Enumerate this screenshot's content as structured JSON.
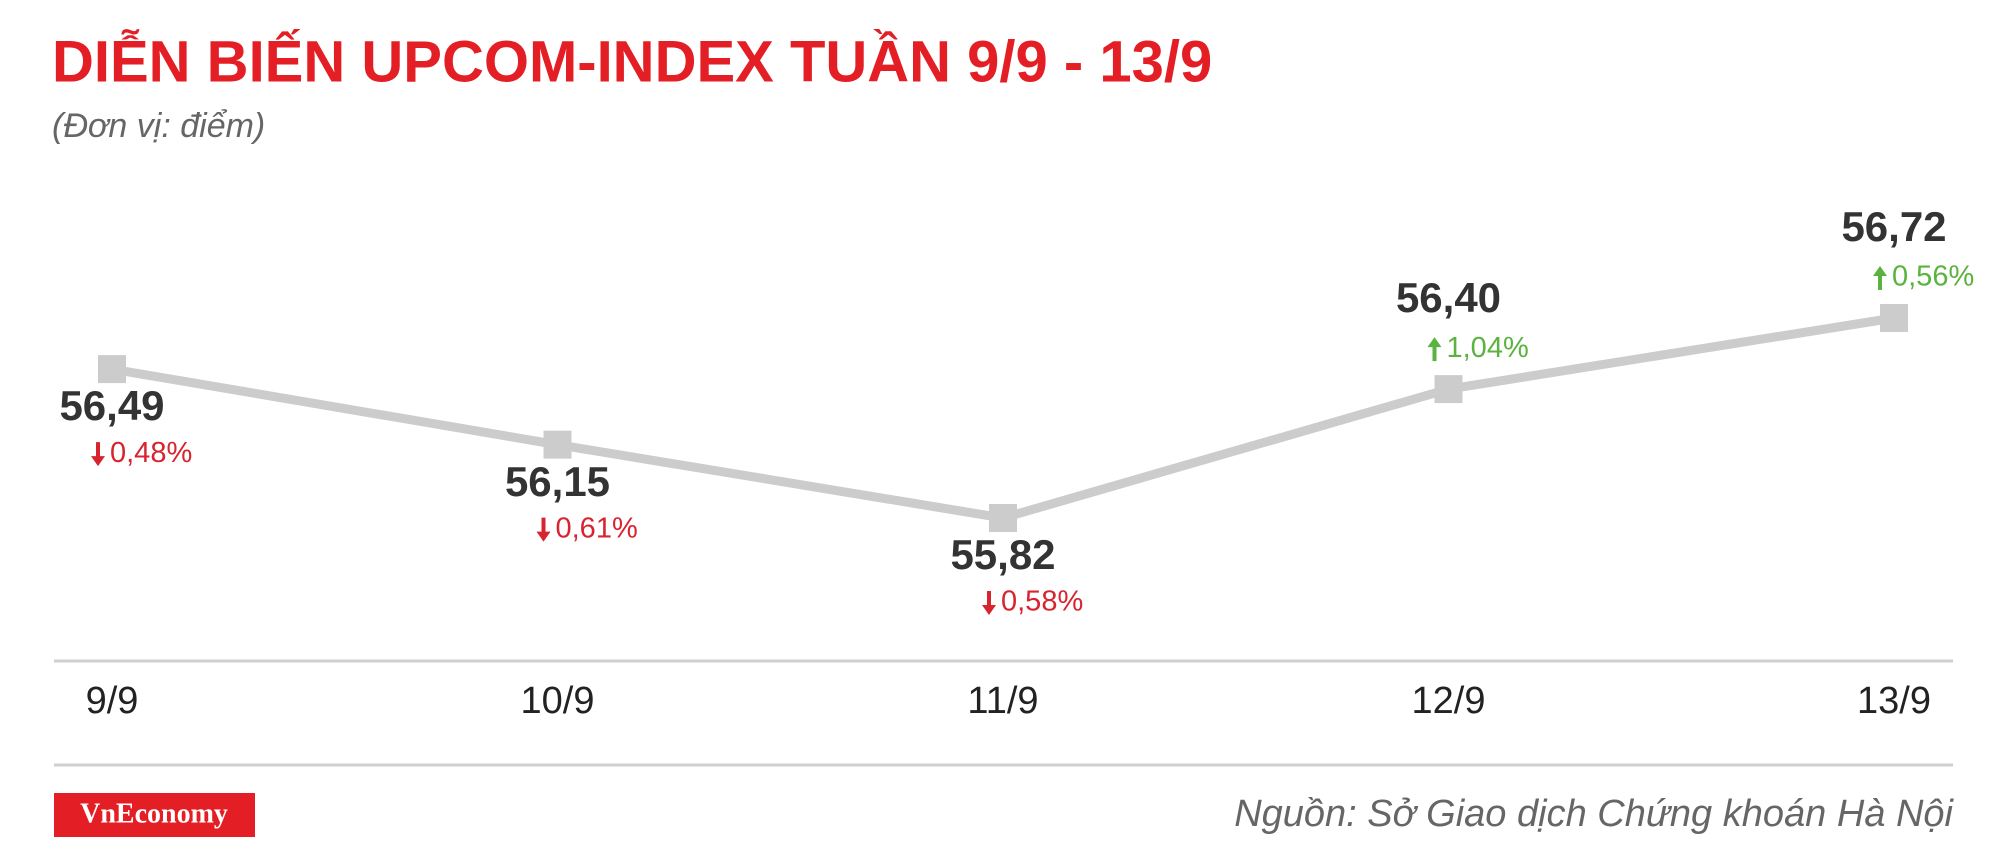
{
  "chart_data": {
    "type": "line",
    "title": "DIỄN BIẾN UPCOM-INDEX TUẦN 9/9 - 13/9",
    "subtitle": "(Đơn vị: điểm)",
    "categories": [
      "9/9",
      "10/9",
      "11/9",
      "12/9",
      "13/9"
    ],
    "values": [
      56.49,
      56.15,
      55.82,
      56.4,
      56.72
    ],
    "value_labels": [
      "56,49",
      "56,15",
      "55,82",
      "56,40",
      "56,72"
    ],
    "changes": [
      -0.48,
      -0.61,
      -0.58,
      1.04,
      0.56
    ],
    "change_labels": [
      "0,48%",
      "0,61%",
      "0,58%",
      "1,04%",
      "0,56%"
    ],
    "color": "#cccccc",
    "down_color": "#d7242f",
    "up_color": "#5bb33f"
  },
  "footer": {
    "brand": "VnEconomy",
    "source": "Nguồn: Sở Giao dịch Chứng khoán Hà Nội"
  }
}
